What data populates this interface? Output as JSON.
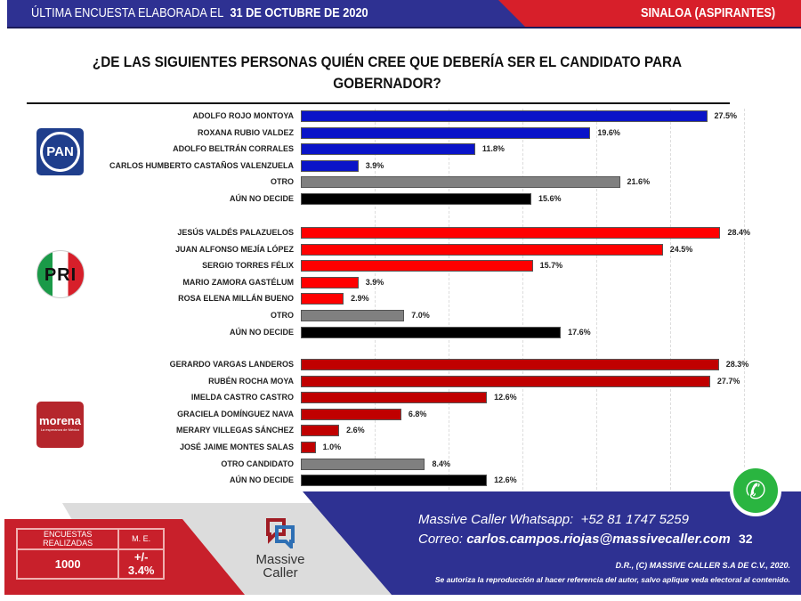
{
  "header": {
    "left_prefix": "ÚLTIMA ENCUESTA ELABORADA EL",
    "date": "31 DE OCTUBRE DE 2020",
    "right": "SINALOA (ASPIRANTES)"
  },
  "colors": {
    "pan": "#0a14c8",
    "pri": "#ff0000",
    "morena": "#c00000",
    "otro": "#808080",
    "no_decide": "#000000"
  },
  "chart_data": {
    "type": "bar",
    "orientation": "horizontal",
    "title": "¿DE LAS SIGUIENTES PERSONAS QUIÉN CREE QUE DEBERÍA SER EL CANDIDATO PARA GOBERNADOR?",
    "unit": "%",
    "grid": true,
    "groups": [
      {
        "party": "PAN",
        "logo_text": "PAN",
        "items": [
          {
            "label": "ADOLFO ROJO MONTOYA",
            "value": 27.5,
            "kind": "party"
          },
          {
            "label": "ROXANA RUBIO VALDEZ",
            "value": 19.6,
            "kind": "party"
          },
          {
            "label": "ADOLFO BELTRÁN CORRALES",
            "value": 11.8,
            "kind": "party"
          },
          {
            "label": "CARLOS HUMBERTO CASTAÑOS VALENZUELA",
            "value": 3.9,
            "kind": "party"
          },
          {
            "label": "OTRO",
            "value": 21.6,
            "kind": "otro"
          },
          {
            "label": "AÚN NO DECIDE",
            "value": 15.6,
            "kind": "no_decide"
          }
        ]
      },
      {
        "party": "PRI",
        "logo_text": "PRI",
        "items": [
          {
            "label": "JESÚS VALDÉS PALAZUELOS",
            "value": 28.4,
            "kind": "party"
          },
          {
            "label": "JUAN ALFONSO MEJÍA LÓPEZ",
            "value": 24.5,
            "kind": "party"
          },
          {
            "label": "SERGIO TORRES FÉLIX",
            "value": 15.7,
            "kind": "party"
          },
          {
            "label": "MARIO ZAMORA GASTÉLUM",
            "value": 3.9,
            "kind": "party"
          },
          {
            "label": "ROSA ELENA MILLÁN BUENO",
            "value": 2.9,
            "kind": "party"
          },
          {
            "label": "OTRO",
            "value": 7.0,
            "kind": "otro"
          },
          {
            "label": "AÚN NO DECIDE",
            "value": 17.6,
            "kind": "no_decide"
          }
        ]
      },
      {
        "party": "MORENA",
        "logo_text": "morena",
        "logo_subtext": "La esperanza de México",
        "items": [
          {
            "label": "GERARDO VARGAS LANDEROS",
            "value": 28.3,
            "kind": "party"
          },
          {
            "label": "RUBÉN ROCHA MOYA",
            "value": 27.7,
            "kind": "party"
          },
          {
            "label": "IMELDA CASTRO CASTRO",
            "value": 12.6,
            "kind": "party"
          },
          {
            "label": "GRACIELA DOMÍNGUEZ NAVA",
            "value": 6.8,
            "kind": "party"
          },
          {
            "label": "MERARY VILLEGAS SÁNCHEZ",
            "value": 2.6,
            "kind": "party"
          },
          {
            "label": "JOSÉ JAIME MONTES SALAS",
            "value": 1.0,
            "kind": "party"
          },
          {
            "label": "OTRO CANDIDATO",
            "value": 8.4,
            "kind": "otro"
          },
          {
            "label": "AÚN NO DECIDE",
            "value": 12.6,
            "kind": "no_decide"
          }
        ]
      }
    ]
  },
  "footer": {
    "table": {
      "h1": "ENCUESTAS REALIZADAS",
      "h2": "M. E.",
      "v1": "1000",
      "v2": "+/- 3.4%"
    },
    "brand_line1": "Massive",
    "brand_line2": "Caller",
    "whatsapp_label": "Massive Caller Whatsapp:",
    "whatsapp_number": "+52 81 1747 5259",
    "email_label": "Correo:",
    "email": "carlos.campos.riojas@massivecaller.com",
    "page": "32",
    "copyright": "D.R., (C) MASSIVE CALLER S.A DE C.V., 2020.",
    "disclaimer": "Se autoriza la reproducción al hacer referencia del autor, salvo aplique veda electoral al contenido.",
    "whatsapp_icon": "whatsapp-icon"
  }
}
